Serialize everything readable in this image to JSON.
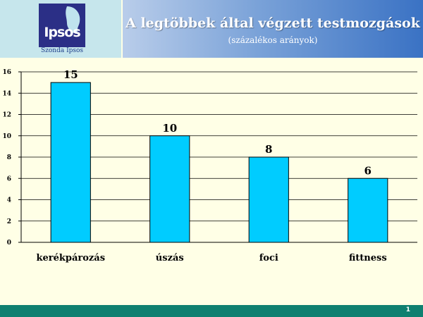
{
  "header": {
    "logo_text": "Ipsos",
    "logo_subtext": "Szonda Ipsos",
    "title": "A legtöbbek által végzett testmozgások",
    "subtitle": "(százalékos arányok)"
  },
  "chart_data": {
    "type": "bar",
    "title": "",
    "xlabel": "",
    "ylabel": "",
    "categories": [
      "kerékpározás",
      "úszás",
      "foci",
      "fittness"
    ],
    "values": [
      15,
      10,
      8,
      6
    ],
    "data_labels": [
      "15",
      "10",
      "8",
      "6"
    ],
    "ylim": [
      0,
      16
    ],
    "yticks": [
      "0",
      "2",
      "4",
      "6",
      "8",
      "10",
      "12",
      "14",
      "16"
    ],
    "grid": true,
    "bar_color": "#00ccff",
    "bar_edge_color": "#000000"
  },
  "footer": {
    "page_number": "1",
    "bar_color": "#0f8070"
  }
}
